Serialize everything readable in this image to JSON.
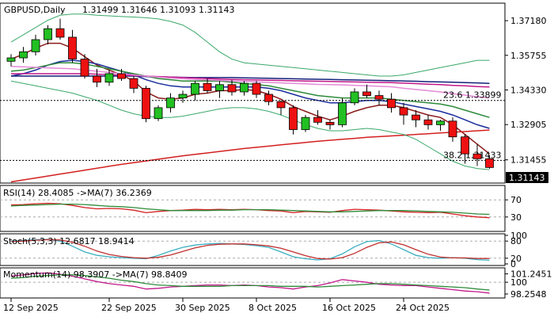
{
  "chart_data": {
    "type": "candlestick",
    "header": {
      "symbol_tf": "GBPUSD,Daily",
      "ohlc": "1.31499 1.31646 1.31093 1.31143"
    },
    "price_axis": {
      "ylim": [
        1.305,
        1.379
      ],
      "ticks": [
        "1.37180",
        "1.35755",
        "1.34330",
        "1.32905",
        "1.31455"
      ],
      "tick_values": [
        1.3718,
        1.35755,
        1.3433,
        1.32905,
        1.31455
      ]
    },
    "last_price": {
      "text": "1.31143",
      "value": 1.31143
    },
    "levels": [
      {
        "label": "23.6 1.33899",
        "value": 1.33899,
        "start_index": 0
      },
      {
        "label": "38.2 1.31433",
        "value": 1.31433,
        "start_index": 0
      }
    ],
    "date_labels": [
      {
        "text": "12 Sep 2025",
        "index": 0
      },
      {
        "text": "22 Sep 2025",
        "index": 8
      },
      {
        "text": "30 Sep 2025",
        "index": 14
      },
      {
        "text": "8 Oct 2025",
        "index": 20
      },
      {
        "text": "16 Oct 2025",
        "index": 26
      },
      {
        "text": "24 Oct 2025",
        "index": 32
      }
    ],
    "candles": [
      [
        1.3551,
        1.358,
        1.353,
        1.3565
      ],
      [
        1.3565,
        1.361,
        1.3545,
        1.359
      ],
      [
        1.359,
        1.366,
        1.3575,
        1.364
      ],
      [
        1.364,
        1.37,
        1.362,
        1.3685
      ],
      [
        1.3685,
        1.3726,
        1.364,
        1.365
      ],
      [
        1.365,
        1.368,
        1.3545,
        1.356
      ],
      [
        1.356,
        1.358,
        1.348,
        1.349
      ],
      [
        1.349,
        1.352,
        1.3445,
        1.3465
      ],
      [
        1.3465,
        1.3515,
        1.345,
        1.35
      ],
      [
        1.35,
        1.352,
        1.347,
        1.348
      ],
      [
        1.348,
        1.349,
        1.342,
        1.344
      ],
      [
        1.344,
        1.345,
        1.33,
        1.3315
      ],
      [
        1.3315,
        1.337,
        1.3305,
        1.336
      ],
      [
        1.336,
        1.342,
        1.334,
        1.34
      ],
      [
        1.34,
        1.343,
        1.338,
        1.3415
      ],
      [
        1.3415,
        1.347,
        1.339,
        1.346
      ],
      [
        1.346,
        1.348,
        1.342,
        1.343
      ],
      [
        1.343,
        1.347,
        1.34,
        1.3455
      ],
      [
        1.3455,
        1.3475,
        1.341,
        1.3425
      ],
      [
        1.3425,
        1.347,
        1.341,
        1.346
      ],
      [
        1.346,
        1.347,
        1.34,
        1.3415
      ],
      [
        1.3415,
        1.343,
        1.337,
        1.3385
      ],
      [
        1.3385,
        1.339,
        1.333,
        1.336
      ],
      [
        1.336,
        1.337,
        1.325,
        1.327
      ],
      [
        1.327,
        1.333,
        1.326,
        1.332
      ],
      [
        1.332,
        1.335,
        1.329,
        1.33
      ],
      [
        1.33,
        1.331,
        1.327,
        1.329
      ],
      [
        1.329,
        1.34,
        1.328,
        1.338
      ],
      [
        1.338,
        1.344,
        1.337,
        1.3425
      ],
      [
        1.3425,
        1.3455,
        1.34,
        1.341
      ],
      [
        1.341,
        1.343,
        1.337,
        1.3395
      ],
      [
        1.3395,
        1.342,
        1.334,
        1.336
      ],
      [
        1.336,
        1.338,
        1.329,
        1.333
      ],
      [
        1.333,
        1.335,
        1.328,
        1.331
      ],
      [
        1.331,
        1.333,
        1.327,
        1.329
      ],
      [
        1.329,
        1.331,
        1.3265,
        1.3305
      ],
      [
        1.3305,
        1.332,
        1.322,
        1.324
      ],
      [
        1.324,
        1.325,
        1.313,
        1.317
      ],
      [
        1.317,
        1.321,
        1.312,
        1.315
      ],
      [
        1.315,
        1.3165,
        1.3109,
        1.3114
      ]
    ],
    "overlays": [
      {
        "name": "ma_fast",
        "color": "#8b1a1a",
        "values": [
          1.356,
          1.358,
          1.3605,
          1.3625,
          1.3625,
          1.3605,
          1.357,
          1.3535,
          1.3515,
          1.3495,
          1.347,
          1.3425,
          1.34,
          1.3395,
          1.34,
          1.3415,
          1.342,
          1.343,
          1.343,
          1.3435,
          1.343,
          1.3415,
          1.3395,
          1.3365,
          1.3345,
          1.3325,
          1.331,
          1.3325,
          1.3345,
          1.336,
          1.337,
          1.337,
          1.336,
          1.3345,
          1.333,
          1.332,
          1.329,
          1.325,
          1.321,
          1.317
        ]
      },
      {
        "name": "ma_blue",
        "color": "#1a2d9c",
        "values": [
          1.349,
          1.35,
          1.3515,
          1.3535,
          1.355,
          1.3555,
          1.355,
          1.354,
          1.3525,
          1.351,
          1.3495,
          1.3475,
          1.346,
          1.345,
          1.3445,
          1.3445,
          1.3445,
          1.3445,
          1.3445,
          1.3445,
          1.3445,
          1.344,
          1.343,
          1.3415,
          1.34,
          1.339,
          1.338,
          1.338,
          1.3385,
          1.339,
          1.339,
          1.3385,
          1.3375,
          1.3365,
          1.3355,
          1.3345,
          1.333,
          1.331,
          1.329,
          1.3275
        ]
      },
      {
        "name": "ma_green",
        "color": "#2e8b3a",
        "values": [
          1.351,
          1.3515,
          1.3525,
          1.3535,
          1.3545,
          1.3545,
          1.354,
          1.353,
          1.352,
          1.351,
          1.35,
          1.349,
          1.348,
          1.3475,
          1.347,
          1.347,
          1.347,
          1.347,
          1.3465,
          1.346,
          1.3455,
          1.345,
          1.344,
          1.343,
          1.342,
          1.341,
          1.3405,
          1.34,
          1.34,
          1.34,
          1.34,
          1.3395,
          1.339,
          1.3385,
          1.338,
          1.3375,
          1.3365,
          1.335,
          1.3335,
          1.332
        ]
      },
      {
        "name": "ma_navy",
        "color": "#14207a",
        "values": [
          1.349,
          1.349,
          1.349,
          1.349,
          1.349,
          1.349,
          1.349,
          1.349,
          1.349,
          1.349,
          1.349,
          1.3488,
          1.3487,
          1.3486,
          1.3485,
          1.3484,
          1.3484,
          1.3484,
          1.3484,
          1.3483,
          1.3482,
          1.3481,
          1.348,
          1.3479,
          1.3478,
          1.3477,
          1.3476,
          1.3475,
          1.3474,
          1.3473,
          1.3472,
          1.3471,
          1.347,
          1.3469,
          1.3467,
          1.3466,
          1.3465,
          1.3463,
          1.3462,
          1.346
        ]
      },
      {
        "name": "ma_magenta",
        "color": "#c2188a",
        "values": [
          1.35,
          1.35,
          1.35,
          1.35,
          1.35,
          1.35,
          1.35,
          1.3498,
          1.3496,
          1.3494,
          1.3492,
          1.349,
          1.3488,
          1.3486,
          1.3484,
          1.3482,
          1.348,
          1.3478,
          1.3476,
          1.3475,
          1.3474,
          1.3473,
          1.3472,
          1.3471,
          1.347,
          1.3469,
          1.3468,
          1.3467,
          1.3466,
          1.3465,
          1.3464,
          1.3463,
          1.3461,
          1.3459,
          1.3457,
          1.3455,
          1.3452,
          1.345,
          1.3447,
          1.3445
        ]
      },
      {
        "name": "ma_pink",
        "color": "#e58ad8",
        "values": [
          1.353,
          1.3528,
          1.3526,
          1.3524,
          1.3522,
          1.352,
          1.3515,
          1.351,
          1.3505,
          1.35,
          1.3495,
          1.349,
          1.3486,
          1.3482,
          1.3479,
          1.3476,
          1.3474,
          1.3472,
          1.347,
          1.3468,
          1.3466,
          1.3464,
          1.3462,
          1.346,
          1.3458,
          1.3456,
          1.3455,
          1.3454,
          1.3452,
          1.345,
          1.3448,
          1.3446,
          1.344,
          1.3435,
          1.343,
          1.3425,
          1.3418,
          1.3412,
          1.3405,
          1.34
        ]
      },
      {
        "name": "ma_red_long",
        "color": "#d42020",
        "values": [
          1.3055,
          1.3063,
          1.3071,
          1.3079,
          1.3087,
          1.3095,
          1.3103,
          1.3111,
          1.3119,
          1.3127,
          1.3134,
          1.3141,
          1.3148,
          1.3155,
          1.3162,
          1.3168,
          1.3174,
          1.318,
          1.3186,
          1.3192,
          1.3197,
          1.3202,
          1.3207,
          1.3212,
          1.3217,
          1.3222,
          1.3226,
          1.323,
          1.3234,
          1.3238,
          1.3241,
          1.3244,
          1.3247,
          1.325,
          1.3253,
          1.3256,
          1.3259,
          1.3262,
          1.3265,
          1.3268
        ]
      },
      {
        "name": "bb_upper",
        "color": "#3aa86a",
        "values": [
          1.363,
          1.366,
          1.369,
          1.372,
          1.374,
          1.3745,
          1.3745,
          1.374,
          1.3738,
          1.3735,
          1.3733,
          1.373,
          1.3725,
          1.3715,
          1.37,
          1.367,
          1.363,
          1.359,
          1.356,
          1.3545,
          1.354,
          1.3535,
          1.353,
          1.3525,
          1.352,
          1.3515,
          1.351,
          1.3505,
          1.35,
          1.3495,
          1.349,
          1.349,
          1.3495,
          1.3505,
          1.3515,
          1.3525,
          1.3535,
          1.3545,
          1.3555,
          1.3555
        ]
      },
      {
        "name": "bb_lower",
        "color": "#3aa86a",
        "values": [
          1.347,
          1.346,
          1.345,
          1.344,
          1.343,
          1.342,
          1.3405,
          1.339,
          1.337,
          1.335,
          1.3335,
          1.3325,
          1.332,
          1.332,
          1.3325,
          1.3335,
          1.3345,
          1.3355,
          1.336,
          1.336,
          1.3355,
          1.3345,
          1.333,
          1.331,
          1.329,
          1.3275,
          1.3265,
          1.3265,
          1.327,
          1.3275,
          1.327,
          1.326,
          1.325,
          1.323,
          1.32,
          1.317,
          1.314,
          1.312,
          1.311,
          1.3105
        ]
      }
    ],
    "rsi": {
      "label": "RSI(14) 28.4085 ->MA(7) 36.2369",
      "ylim": [
        0,
        100
      ],
      "levels": [
        70,
        30
      ],
      "ticks": [
        "70",
        "30"
      ],
      "series": [
        {
          "name": "RSI(14)",
          "color": "#d42020",
          "values": [
            58,
            59,
            61,
            62,
            61,
            57,
            52,
            49,
            50,
            49,
            46,
            40,
            43,
            45,
            46,
            48,
            47,
            48,
            47,
            48,
            47,
            45,
            44,
            40,
            43,
            42,
            41,
            45,
            48,
            47,
            46,
            44,
            42,
            41,
            40,
            41,
            37,
            33,
            30,
            28.4
          ]
        },
        {
          "name": "MA(7)",
          "color": "#2e8b3a",
          "values": [
            56,
            57,
            58,
            59,
            60,
            60,
            59,
            57,
            55,
            54,
            52,
            49,
            47,
            45,
            45,
            45,
            45,
            46,
            46,
            47,
            47,
            47,
            46,
            45,
            44,
            43,
            42,
            42,
            43,
            44,
            45,
            45,
            45,
            44,
            43,
            42,
            41,
            39,
            37,
            36.2
          ]
        }
      ]
    },
    "stoch": {
      "label": "Stoch(5,3,3) 12.6817 18.9414",
      "ylim": [
        0,
        100
      ],
      "levels": [
        80,
        20
      ],
      "ticks": [
        "100",
        "80",
        "20",
        "0"
      ],
      "series": [
        {
          "name": "%K",
          "color": "#3aaec0",
          "values": [
            80,
            82,
            85,
            86,
            80,
            62,
            42,
            30,
            25,
            22,
            20,
            18,
            30,
            45,
            58,
            66,
            70,
            72,
            70,
            68,
            64,
            58,
            42,
            25,
            18,
            14,
            18,
            35,
            60,
            78,
            82,
            70,
            50,
            30,
            22,
            20,
            22,
            20,
            15,
            12.7
          ]
        },
        {
          "name": "%D",
          "color": "#c03030",
          "values": [
            78,
            80,
            83,
            85,
            84,
            76,
            62,
            45,
            33,
            26,
            22,
            20,
            23,
            31,
            44,
            56,
            65,
            69,
            70,
            70,
            67,
            63,
            55,
            42,
            29,
            19,
            17,
            22,
            37,
            58,
            74,
            77,
            67,
            50,
            34,
            24,
            21,
            21,
            19,
            18.9
          ]
        }
      ]
    },
    "momentum": {
      "label": "Momentum(14) 98.3907 ->MA(7) 98.8409",
      "ylim": [
        97.9,
        101.9
      ],
      "levels": [
        100
      ],
      "ticks": [
        "101.2451",
        "100",
        "98.2548"
      ],
      "tick_values": [
        101.2451,
        100,
        98.2548
      ],
      "series": [
        {
          "name": "Momentum(14)",
          "color": "#c2188a",
          "values": [
            100.9,
            101.1,
            101.3,
            101.4,
            101.2,
            100.9,
            100.5,
            100.1,
            99.8,
            99.6,
            99.4,
            99.0,
            99.1,
            99.3,
            99.4,
            99.5,
            99.6,
            99.6,
            99.5,
            99.6,
            99.5,
            99.3,
            99.2,
            99.0,
            99.3,
            99.5,
            99.9,
            100.4,
            100.2,
            100.0,
            99.7,
            99.6,
            99.5,
            99.5,
            99.3,
            99.1,
            98.9,
            98.7,
            98.6,
            98.39
          ]
        },
        {
          "name": "MA(7)",
          "color": "#2e8b3a",
          "values": [
            100.6,
            100.7,
            100.9,
            101.0,
            101.1,
            101.1,
            101.0,
            100.8,
            100.6,
            100.3,
            100.1,
            99.8,
            99.6,
            99.5,
            99.4,
            99.4,
            99.4,
            99.4,
            99.5,
            99.5,
            99.5,
            99.5,
            99.4,
            99.4,
            99.4,
            99.3,
            99.4,
            99.5,
            99.6,
            99.7,
            99.8,
            99.8,
            99.7,
            99.6,
            99.5,
            99.4,
            99.3,
            99.2,
            99.0,
            98.84
          ]
        }
      ]
    }
  }
}
